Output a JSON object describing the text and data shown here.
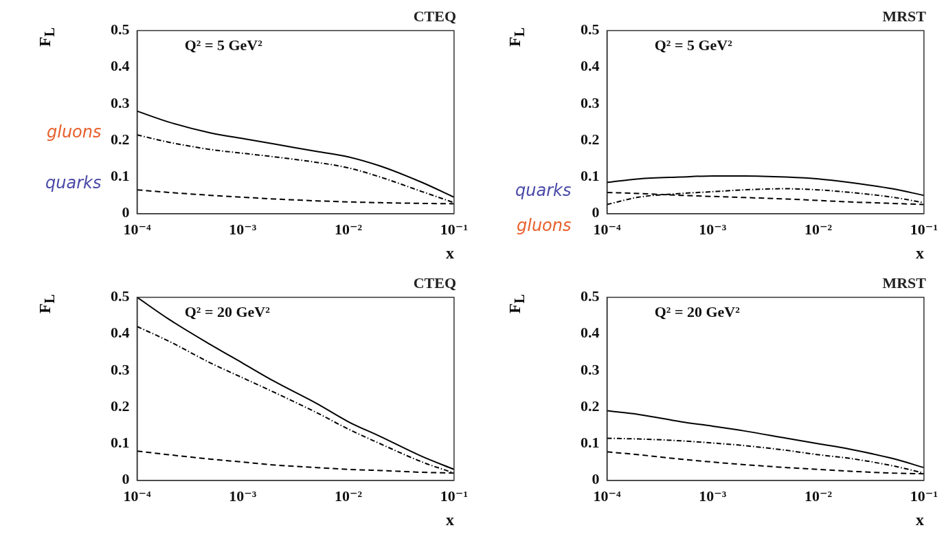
{
  "chart_data": [
    {
      "type": "line",
      "title": "CTEQ",
      "xlabel": "x",
      "ylabel": "F$_{L}$",
      "annotations": [
        "Q² = 5 GeV²",
        "gluons",
        "quarks"
      ],
      "log": "x",
      "x": [
        0.0001,
        0.0002,
        0.0005,
        0.001,
        0.002,
        0.005,
        0.01,
        0.02,
        0.05,
        0.1
      ],
      "xlim": [
        0.0001,
        0.1
      ],
      "xticks": [
        {
          "value": 0.0001,
          "label": "10⁻⁴"
        },
        {
          "value": 0.001,
          "label": "10⁻³"
        },
        {
          "value": 0.01,
          "label": "10⁻²"
        },
        {
          "value": 0.1,
          "label": "10⁻¹"
        }
      ],
      "ylim": [
        0,
        0.5
      ],
      "yticks": [
        0,
        0.1,
        0.2,
        0.3,
        0.4,
        0.5
      ],
      "grid": false,
      "legend": false,
      "marker": "none",
      "series": [
        {
          "color": "#000000",
          "line_style": "solid",
          "values": [
            0.28,
            0.25,
            0.22,
            0.205,
            0.19,
            0.17,
            0.155,
            0.13,
            0.085,
            0.045
          ]
        },
        {
          "color": "#000000",
          "line_style": "dotted",
          "values": [
            0.215,
            0.195,
            0.175,
            0.165,
            0.155,
            0.14,
            0.125,
            0.1,
            0.06,
            0.03
          ]
        },
        {
          "color": "#000000",
          "line_style": "dashed",
          "values": [
            0.065,
            0.058,
            0.05,
            0.045,
            0.04,
            0.035,
            0.032,
            0.03,
            0.028,
            0.027
          ]
        }
      ]
    },
    {
      "type": "line",
      "title": "MRST",
      "xlabel": "x",
      "ylabel": "F$_{L}$",
      "annotations": [
        "Q² = 5 GeV²",
        "quarks",
        "gluons"
      ],
      "log": "x",
      "x": [
        0.0001,
        0.0002,
        0.0005,
        0.001,
        0.002,
        0.005,
        0.01,
        0.02,
        0.05,
        0.1
      ],
      "xlim": [
        0.0001,
        0.1
      ],
      "xticks": [
        {
          "value": 0.0001,
          "label": "10⁻⁴"
        },
        {
          "value": 0.001,
          "label": "10⁻³"
        },
        {
          "value": 0.01,
          "label": "10⁻²"
        },
        {
          "value": 0.1,
          "label": "10⁻¹"
        }
      ],
      "ylim": [
        0,
        0.5
      ],
      "yticks": [
        0,
        0.1,
        0.2,
        0.3,
        0.4,
        0.5
      ],
      "grid": false,
      "legend": false,
      "marker": "none",
      "series": [
        {
          "color": "#000000",
          "line_style": "solid",
          "values": [
            0.085,
            0.095,
            0.1,
            0.103,
            0.103,
            0.1,
            0.095,
            0.085,
            0.068,
            0.05
          ]
        },
        {
          "color": "#000000",
          "line_style": "dotted",
          "values": [
            0.025,
            0.045,
            0.055,
            0.06,
            0.065,
            0.068,
            0.065,
            0.058,
            0.045,
            0.03
          ]
        },
        {
          "color": "#000000",
          "line_style": "dashed",
          "values": [
            0.058,
            0.055,
            0.05,
            0.047,
            0.044,
            0.04,
            0.036,
            0.032,
            0.028,
            0.025
          ]
        }
      ]
    },
    {
      "type": "line",
      "title": "CTEQ",
      "xlabel": "x",
      "ylabel": "F$_{L}$",
      "annotations": [
        "Q² = 20 GeV²"
      ],
      "log": "x",
      "x": [
        0.0001,
        0.0002,
        0.0005,
        0.001,
        0.002,
        0.005,
        0.01,
        0.02,
        0.05,
        0.1
      ],
      "xlim": [
        0.0001,
        0.1
      ],
      "xticks": [
        {
          "value": 0.0001,
          "label": "10⁻⁴"
        },
        {
          "value": 0.001,
          "label": "10⁻³"
        },
        {
          "value": 0.01,
          "label": "10⁻²"
        },
        {
          "value": 0.1,
          "label": "10⁻¹"
        }
      ],
      "ylim": [
        0,
        0.5
      ],
      "yticks": [
        0,
        0.1,
        0.2,
        0.3,
        0.4,
        0.5
      ],
      "grid": false,
      "legend": false,
      "marker": "none",
      "series": [
        {
          "color": "#000000",
          "line_style": "solid",
          "values": [
            0.5,
            0.44,
            0.37,
            0.32,
            0.27,
            0.21,
            0.16,
            0.12,
            0.065,
            0.03
          ]
        },
        {
          "color": "#000000",
          "line_style": "dotted",
          "values": [
            0.42,
            0.38,
            0.32,
            0.28,
            0.24,
            0.185,
            0.14,
            0.1,
            0.05,
            0.02
          ]
        },
        {
          "color": "#000000",
          "line_style": "dashed",
          "values": [
            0.08,
            0.07,
            0.058,
            0.05,
            0.042,
            0.035,
            0.03,
            0.027,
            0.022,
            0.02
          ]
        }
      ]
    },
    {
      "type": "line",
      "title": "MRST",
      "xlabel": "x",
      "ylabel": "F$_{L}$",
      "annotations": [
        "Q² = 20 GeV²"
      ],
      "log": "x",
      "x": [
        0.0001,
        0.0002,
        0.0005,
        0.001,
        0.002,
        0.005,
        0.01,
        0.02,
        0.05,
        0.1
      ],
      "xlim": [
        0.0001,
        0.1
      ],
      "xticks": [
        {
          "value": 0.0001,
          "label": "10⁻⁴"
        },
        {
          "value": 0.001,
          "label": "10⁻³"
        },
        {
          "value": 0.01,
          "label": "10⁻²"
        },
        {
          "value": 0.1,
          "label": "10⁻¹"
        }
      ],
      "ylim": [
        0,
        0.5
      ],
      "yticks": [
        0,
        0.1,
        0.2,
        0.3,
        0.4,
        0.5
      ],
      "grid": false,
      "legend": false,
      "marker": "none",
      "series": [
        {
          "color": "#000000",
          "line_style": "solid",
          "values": [
            0.19,
            0.18,
            0.16,
            0.148,
            0.135,
            0.115,
            0.1,
            0.085,
            0.06,
            0.035
          ]
        },
        {
          "color": "#000000",
          "line_style": "dotted",
          "values": [
            0.115,
            0.113,
            0.108,
            0.102,
            0.095,
            0.082,
            0.07,
            0.06,
            0.04,
            0.02
          ]
        },
        {
          "color": "#000000",
          "line_style": "dashed",
          "values": [
            0.078,
            0.07,
            0.058,
            0.05,
            0.043,
            0.035,
            0.03,
            0.025,
            0.02,
            0.018
          ]
        }
      ]
    }
  ]
}
